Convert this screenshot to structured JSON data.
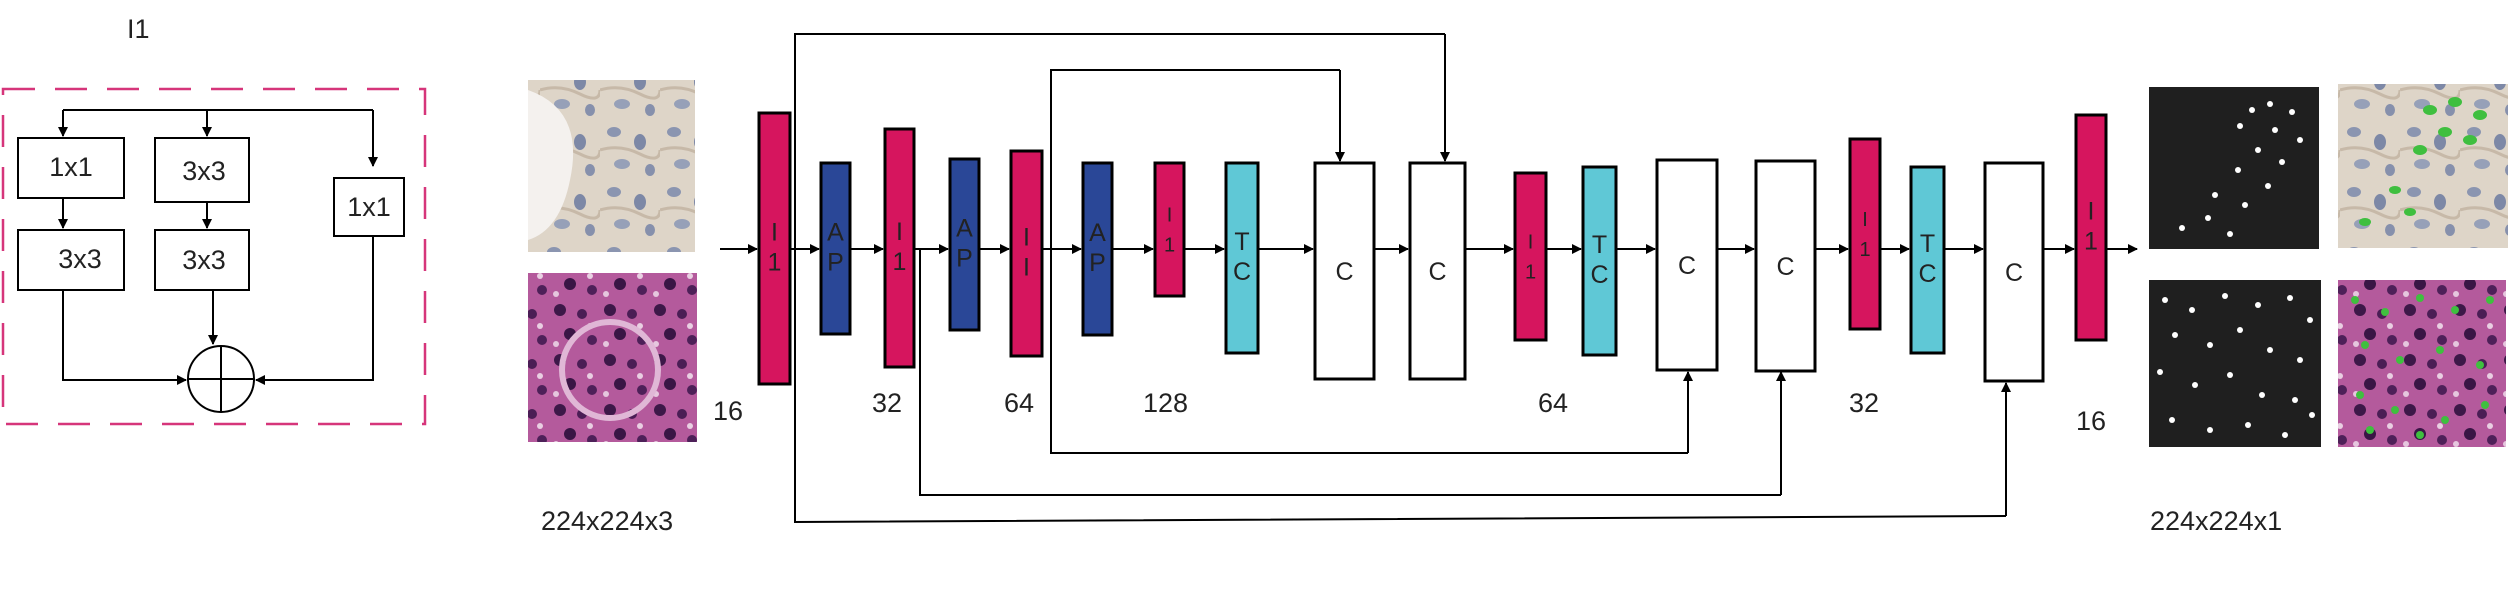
{
  "inset": {
    "title": "I1",
    "branches": [
      {
        "top": "1x1",
        "bottom": "3x3"
      },
      {
        "top": "3x3",
        "bottom": "3x3"
      },
      {
        "single": "1x1"
      }
    ]
  },
  "network": {
    "input_size": "224x224x3",
    "output_size": "224x224x1",
    "blocks": [
      {
        "letters": [
          "I",
          "1"
        ],
        "type": "inception"
      },
      {
        "letters": [
          "A",
          "P"
        ],
        "type": "avgpool"
      },
      {
        "letters": [
          "I",
          "1"
        ],
        "type": "inception"
      },
      {
        "letters": [
          "A",
          "P"
        ],
        "type": "avgpool"
      },
      {
        "letters": [
          "I",
          "I"
        ],
        "type": "inception"
      },
      {
        "letters": [
          "A",
          "P"
        ],
        "type": "avgpool"
      },
      {
        "letters": [
          "I",
          "1"
        ],
        "type": "inception"
      },
      {
        "letters": [
          "T",
          "C"
        ],
        "type": "transconv"
      },
      {
        "letters": [
          "C"
        ],
        "type": "concat"
      },
      {
        "letters": [
          "C"
        ],
        "type": "concat"
      },
      {
        "letters": [
          "I",
          "1"
        ],
        "type": "inception"
      },
      {
        "letters": [
          "T",
          "C"
        ],
        "type": "transconv"
      },
      {
        "letters": [
          "C"
        ],
        "type": "concat"
      },
      {
        "letters": [
          "C"
        ],
        "type": "concat"
      },
      {
        "letters": [
          "I",
          "1"
        ],
        "type": "inception"
      },
      {
        "letters": [
          "T",
          "C"
        ],
        "type": "transconv"
      },
      {
        "letters": [
          "C"
        ],
        "type": "concat"
      },
      {
        "letters": [
          "I",
          "1"
        ],
        "type": "inception"
      }
    ],
    "filter_counts": [
      "16",
      "32",
      "64",
      "128",
      "64",
      "32",
      "16"
    ]
  },
  "colors": {
    "inception": "#d6155e",
    "avgpool": "#2a4797",
    "transconv": "#5fc8d6",
    "concat": "#ffffff",
    "inset_border": "#d6357a"
  }
}
